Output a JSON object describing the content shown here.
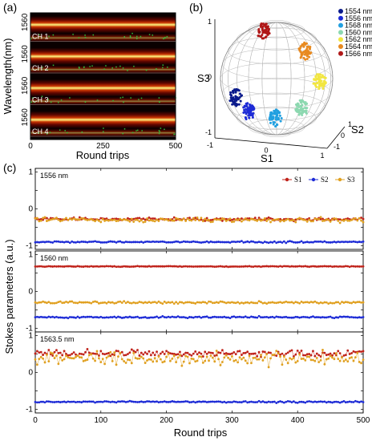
{
  "panels": {
    "a_label": "(a)",
    "b_label": "(b)",
    "c_label": "(c)"
  },
  "colors": {
    "S1": "#c0221a",
    "S2": "#1d2bd6",
    "S3": "#e0a020",
    "heat_dark": "#0a0000",
    "heat_mid": "#b01000",
    "heat_bright": "#fff680"
  },
  "chart_data": [
    {
      "type": "heatmap",
      "panel": "(a)",
      "xlabel": "Round trips",
      "ylabel": "Wavelength(nm)",
      "xlim": [
        0,
        500
      ],
      "xticks": [
        "0",
        "250",
        "500"
      ],
      "yticks": [
        "1560",
        "1560",
        "1560",
        "1560"
      ],
      "channels": [
        "CH 1",
        "CH 2",
        "CH 3",
        "CH 4"
      ]
    },
    {
      "type": "scatter",
      "panel": "(b)",
      "projection": "poincare-sphere",
      "xlabel": "S1",
      "ylabel": "S3",
      "zlabel": "S2",
      "s1_ticks": [
        "-1",
        "0",
        "1"
      ],
      "s2_ticks": [
        "-1",
        "0",
        "1"
      ],
      "s3_ticks": [
        "-1",
        "0",
        "1"
      ],
      "legend_position": "top-right",
      "series": [
        {
          "name": "1554 nm",
          "color": "#0a1a8c",
          "s1": -0.78,
          "s2": 0.05,
          "s3": -0.35
        },
        {
          "name": "1556 nm",
          "color": "#1d2bd6",
          "s1": -0.55,
          "s2": 0.1,
          "s3": -0.6
        },
        {
          "name": "1568 nm",
          "color": "#22a0e0",
          "s1": -0.05,
          "s2": 0.15,
          "s3": -0.72
        },
        {
          "name": "1560 nm",
          "color": "#8cd8b0",
          "s1": 0.45,
          "s2": 0.1,
          "s3": -0.55
        },
        {
          "name": "1562 nm",
          "color": "#f2e640",
          "s1": 0.8,
          "s2": 0.05,
          "s3": -0.05
        },
        {
          "name": "1564 nm",
          "color": "#e88a20",
          "s1": 0.55,
          "s2": -0.1,
          "s3": 0.5
        },
        {
          "name": "1566 nm",
          "color": "#b01818",
          "s1": -0.2,
          "s2": -0.2,
          "s3": 0.85
        }
      ]
    },
    {
      "type": "scatter",
      "panel": "(c)",
      "xlabel": "Round trips",
      "ylabel": "Stokes parameters (a.u.)",
      "xlim": [
        0,
        500
      ],
      "xticks": [
        0,
        100,
        200,
        300,
        400,
        500
      ],
      "yticks": [
        -1,
        -0.5,
        0,
        0.5,
        1
      ],
      "ytick_labels": [
        "-1",
        "",
        "0",
        "",
        "1"
      ],
      "legend": [
        "S1",
        "S2",
        "S3"
      ],
      "legend_position": "top-right",
      "subplots": [
        {
          "label": "1556 nm",
          "ylim": [
            -1.1,
            1.1
          ],
          "series": [
            {
              "name": "S1",
              "mean": -0.28,
              "noise": 0.04
            },
            {
              "name": "S2",
              "mean": -0.9,
              "noise": 0.02
            },
            {
              "name": "S3",
              "mean": -0.3,
              "noise": 0.06
            }
          ]
        },
        {
          "label": "1560 nm",
          "ylim": [
            -1.1,
            1.1
          ],
          "series": [
            {
              "name": "S1",
              "mean": 0.68,
              "noise": 0.01
            },
            {
              "name": "S2",
              "mean": -0.7,
              "noise": 0.02
            },
            {
              "name": "S3",
              "mean": -0.3,
              "noise": 0.03
            }
          ]
        },
        {
          "label": "1563.5 nm",
          "ylim": [
            -1.1,
            1.1
          ],
          "series": [
            {
              "name": "S1",
              "mean": 0.52,
              "noise": 0.1
            },
            {
              "name": "S2",
              "mean": -0.8,
              "noise": 0.02
            },
            {
              "name": "S3",
              "mean": 0.38,
              "noise": 0.18
            }
          ]
        }
      ]
    }
  ]
}
